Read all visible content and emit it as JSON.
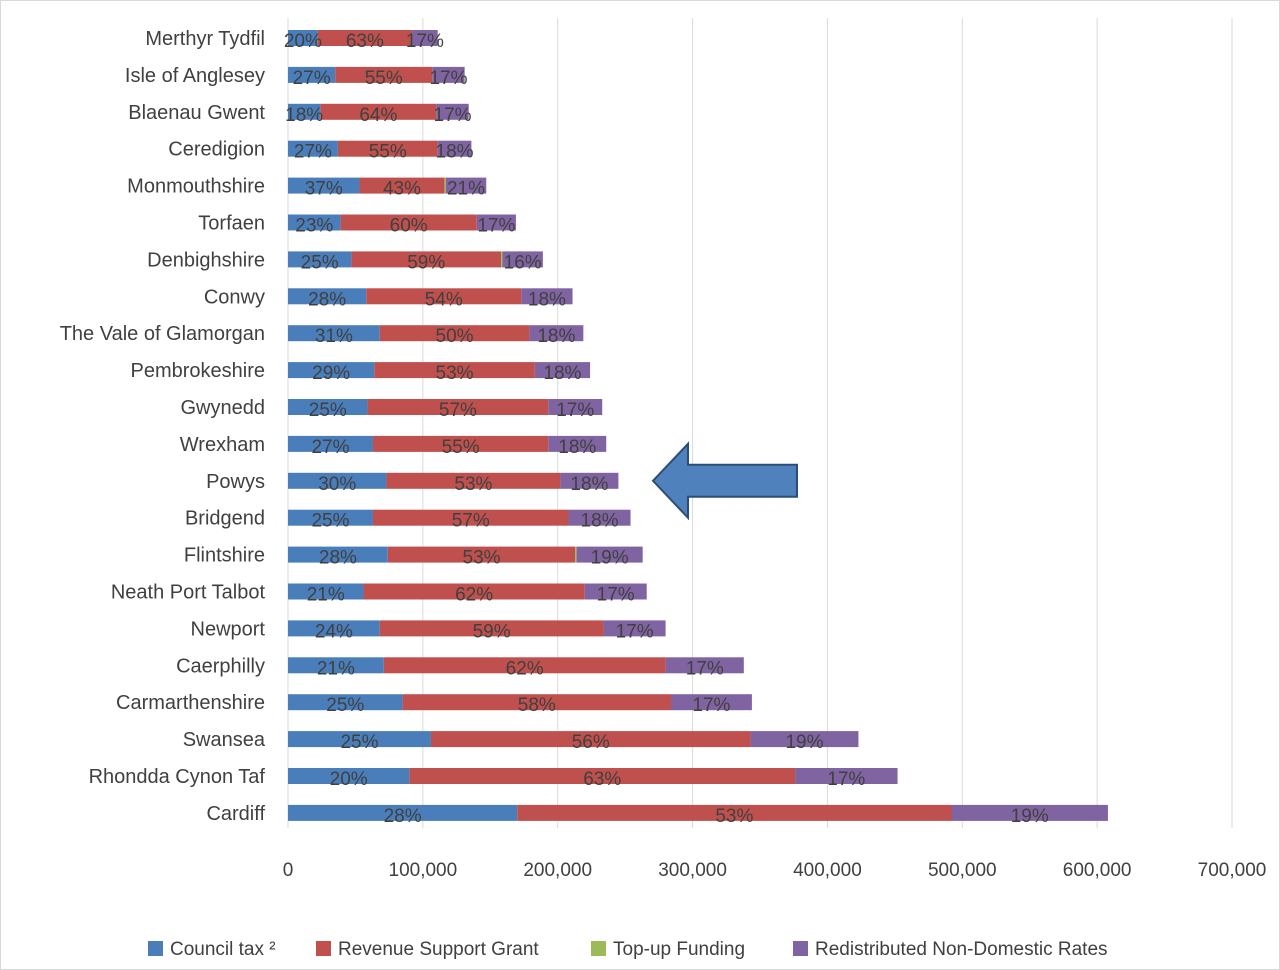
{
  "chart_data": {
    "type": "bar",
    "orientation": "horizontal",
    "stacked": true,
    "title": "",
    "xlabel": "",
    "ylabel": "",
    "xlim": [
      0,
      700000
    ],
    "x_ticks": [
      0,
      100000,
      200000,
      300000,
      400000,
      500000,
      600000,
      700000
    ],
    "x_tick_labels": [
      "0",
      "100,000",
      "200,000",
      "300,000",
      "400,000",
      "500,000",
      "600,000",
      "700,000"
    ],
    "grid": "vertical",
    "legend_position": "bottom",
    "categories": [
      "Merthyr Tydfil",
      "Isle of Anglesey",
      "Blaenau Gwent",
      "Ceredigion",
      "Monmouthshire",
      "Torfaen",
      "Denbighshire",
      "Conwy",
      "The Vale of Glamorgan",
      "Pembrokeshire",
      "Gwynedd",
      "Wrexham",
      "Powys",
      "Bridgend",
      "Flintshire",
      "Neath Port Talbot",
      "Newport",
      "Caerphilly",
      "Carmarthenshire",
      "Swansea",
      "Rhondda Cynon Taf",
      "Cardiff"
    ],
    "series": [
      {
        "name": "Council tax ²",
        "color": "#4a7ebb",
        "values": [
          22000,
          35000,
          24000,
          37000,
          53000,
          39000,
          47000,
          58000,
          68000,
          64000,
          59000,
          63000,
          73000,
          63000,
          74000,
          56000,
          68000,
          71000,
          85000,
          106000,
          90000,
          170000
        ],
        "labels": [
          "20%",
          "27%",
          "18%",
          "27%",
          "37%",
          "23%",
          "25%",
          "28%",
          "31%",
          "29%",
          "25%",
          "27%",
          "30%",
          "25%",
          "28%",
          "21%",
          "24%",
          "21%",
          "25%",
          "25%",
          "20%",
          "28%"
        ]
      },
      {
        "name": "Revenue Support Grant",
        "color": "#c0504d",
        "values": [
          70000,
          72000,
          86000,
          74000,
          63000,
          101000,
          111000,
          115000,
          111000,
          119000,
          134000,
          130000,
          129000,
          145000,
          139000,
          164000,
          166000,
          209000,
          199000,
          237000,
          286000,
          322000
        ],
        "labels": [
          "63%",
          "55%",
          "64%",
          "55%",
          "43%",
          "60%",
          "59%",
          "54%",
          "50%",
          "53%",
          "57%",
          "55%",
          "53%",
          "57%",
          "53%",
          "62%",
          "59%",
          "62%",
          "58%",
          "56%",
          "63%",
          "53%"
        ]
      },
      {
        "name": "Top-up Funding",
        "color": "#9bbb59",
        "values": [
          0,
          0,
          0,
          0,
          1000,
          0,
          1000,
          0,
          0,
          0,
          0,
          0,
          0,
          0,
          1000,
          0,
          0,
          0,
          0,
          0,
          0,
          0
        ],
        "labels": [
          "",
          "",
          "",
          "",
          "",
          "",
          "",
          "",
          "",
          "",
          "",
          "",
          "",
          "",
          "",
          "",
          "",
          "",
          "",
          "",
          "",
          ""
        ]
      },
      {
        "name": "Redistributed Non-Domestic Rates",
        "color": "#8064a2",
        "values": [
          19000,
          24000,
          24000,
          25000,
          30000,
          29000,
          30000,
          38000,
          40000,
          41000,
          40000,
          43000,
          43000,
          46000,
          49000,
          46000,
          46000,
          58000,
          60000,
          80000,
          76000,
          116000
        ],
        "labels": [
          "17%",
          "17%",
          "17%",
          "18%",
          "21%",
          "17%",
          "16%",
          "18%",
          "18%",
          "18%",
          "17%",
          "18%",
          "18%",
          "18%",
          "19%",
          "17%",
          "17%",
          "17%",
          "17%",
          "19%",
          "17%",
          "19%"
        ]
      }
    ],
    "annotations": [
      {
        "type": "arrow",
        "direction": "left",
        "points_to": "Powys",
        "color": "#4f81bd"
      }
    ]
  }
}
